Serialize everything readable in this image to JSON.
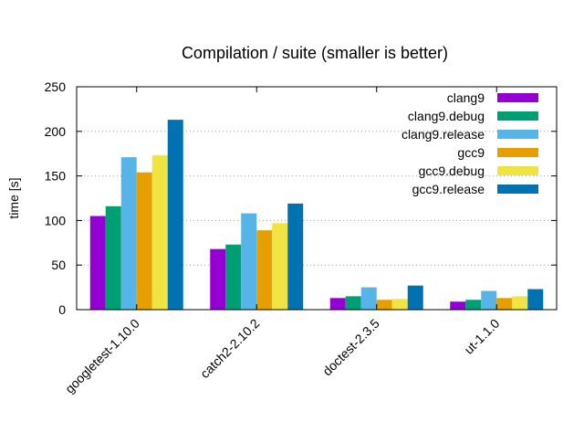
{
  "chart_data": {
    "type": "bar",
    "title": "Compilation / suite (smaller is better)",
    "xlabel": "",
    "ylabel": "time [s]",
    "ylim": [
      0,
      250
    ],
    "yticks": [
      0,
      50,
      100,
      150,
      200,
      250
    ],
    "grid": "horizontal dotted",
    "legend_position": "top-right",
    "categories": [
      "googletest-1.10.0",
      "catch2-2.10.2",
      "doctest-2.3.5",
      "ut-1.1.0"
    ],
    "series": [
      {
        "name": "clang9",
        "color": "#9400d3",
        "values": [
          105,
          68,
          13,
          9
        ]
      },
      {
        "name": "clang9.debug",
        "color": "#009e73",
        "values": [
          116,
          73,
          15,
          11
        ]
      },
      {
        "name": "clang9.release",
        "color": "#56b4e9",
        "values": [
          171,
          108,
          25,
          21
        ]
      },
      {
        "name": "gcc9",
        "color": "#e69f00",
        "values": [
          154,
          89,
          11,
          13
        ]
      },
      {
        "name": "gcc9.debug",
        "color": "#f0e442",
        "values": [
          173,
          97,
          12,
          15
        ]
      },
      {
        "name": "gcc9.release",
        "color": "#0072b2",
        "values": [
          213,
          119,
          27,
          23
        ]
      }
    ]
  }
}
